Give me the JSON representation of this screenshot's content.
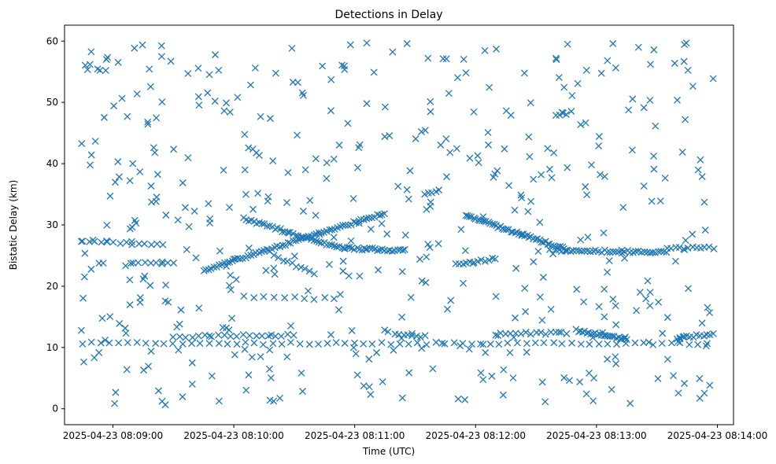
{
  "chart_data": {
    "type": "scatter",
    "title": "Detections in Delay",
    "xlabel": "Time (UTC)",
    "ylabel": "Bistatic Delay (km)",
    "x_tick_labels": [
      "2025-04-23 08:09:00",
      "2025-04-23 08:10:00",
      "2025-04-23 08:11:00",
      "2025-04-23 08:12:00",
      "2025-04-23 08:13:00",
      "2025-04-23 08:14:00"
    ],
    "y_tick_labels": [
      "0",
      "10",
      "20",
      "30",
      "40",
      "50",
      "60"
    ],
    "xlim": [
      "2025-04-23 08:08:36",
      "2025-04-23 08:14:08"
    ],
    "ylim": [
      -2.6,
      62.6
    ],
    "marker": "x",
    "color": "#1f77b4",
    "grid": false,
    "x_range_note": "detections span 2025-04-23 08:08:43 to 08:13:58",
    "tracks": [
      {
        "from": [
          "2025-04-23 08:08:45",
          27.2
        ],
        "to": [
          "2025-04-23 08:09:25",
          26.8
        ],
        "n": 14
      },
      {
        "from": [
          "2025-04-23 08:09:45",
          22.6
        ],
        "to": [
          "2025-04-23 08:11:15",
          32.0
        ],
        "n": 70
      },
      {
        "from": [
          "2025-04-23 08:10:05",
          31.0
        ],
        "to": [
          "2025-04-23 08:10:55",
          26.0
        ],
        "n": 40
      },
      {
        "from": [
          "2025-04-23 08:10:55",
          26.2
        ],
        "to": [
          "2025-04-23 08:11:25",
          25.8
        ],
        "n": 25
      },
      {
        "from": [
          "2025-04-23 08:11:55",
          31.5
        ],
        "to": [
          "2025-04-23 08:12:45",
          26.0
        ],
        "n": 50
      },
      {
        "from": [
          "2025-04-23 08:12:40",
          25.8
        ],
        "to": [
          "2025-04-23 08:13:35",
          25.6
        ],
        "n": 40
      },
      {
        "from": [
          "2025-04-23 08:13:35",
          26.2
        ],
        "to": [
          "2025-04-23 08:13:58",
          26.3
        ],
        "n": 12
      },
      {
        "from": [
          "2025-04-23 08:10:20",
          25.0
        ],
        "to": [
          "2025-04-23 08:10:40",
          22.0
        ],
        "n": 10
      },
      {
        "from": [
          "2025-04-23 08:11:50",
          23.5
        ],
        "to": [
          "2025-04-23 08:12:10",
          24.5
        ],
        "n": 12
      },
      {
        "from": [
          "2025-04-23 08:12:50",
          12.8
        ],
        "to": [
          "2025-04-23 08:13:15",
          11.4
        ],
        "n": 25
      },
      {
        "from": [
          "2025-04-23 08:13:40",
          11.5
        ],
        "to": [
          "2025-04-23 08:13:58",
          12.2
        ],
        "n": 12
      },
      {
        "from": [
          "2025-04-23 08:09:30",
          11.8
        ],
        "to": [
          "2025-04-23 08:10:30",
          12.0
        ],
        "n": 20
      },
      {
        "from": [
          "2025-04-23 08:12:10",
          12.2
        ],
        "to": [
          "2025-04-23 08:12:45",
          12.4
        ],
        "n": 15
      },
      {
        "from": [
          "2025-04-23 08:11:20",
          12.0
        ],
        "to": [
          "2025-04-23 08:11:35",
          11.8
        ],
        "n": 8
      },
      {
        "from": [
          "2025-04-23 08:08:45",
          10.7
        ],
        "to": [
          "2025-04-23 08:13:55",
          10.6
        ],
        "n": 70
      },
      {
        "from": [
          "2025-04-23 08:10:05",
          18.2
        ],
        "to": [
          "2025-04-23 08:10:50",
          18.0
        ],
        "n": 10
      },
      {
        "from": [
          "2025-04-23 08:09:10",
          23.8
        ],
        "to": [
          "2025-04-23 08:09:30",
          23.8
        ],
        "n": 8
      },
      {
        "from": [
          "2025-04-23 08:11:35",
          35.0
        ],
        "to": [
          "2025-04-23 08:11:42",
          35.5
        ],
        "n": 5
      },
      {
        "from": [
          "2025-04-23 08:12:40",
          48.0
        ],
        "to": [
          "2025-04-23 08:12:45",
          48.2
        ],
        "n": 4
      }
    ],
    "clutter_points": 480,
    "clutter_y_range": [
      0.5,
      59.8
    ]
  }
}
